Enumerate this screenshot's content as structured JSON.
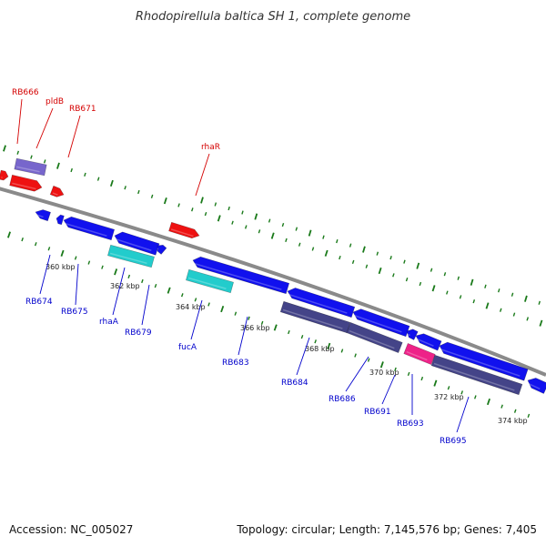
{
  "title": "Rhodopirellula baltica SH 1, complete genome",
  "footer": {
    "accession": "Accession: NC_005027",
    "summary": "Topology: circular; Length: 7,145,576 bp; Genes: 7,405"
  },
  "colors": {
    "backbone": "#8a8a8a",
    "tick": "#1a7a1a",
    "forward_label": "#d40000",
    "reverse_label": "#0000cc",
    "red_gene": "#ee1111",
    "blue_gene": "#1111ee",
    "cyan_gene": "#22cccc",
    "navy_gene": "#444488",
    "purple_gene": "#7766cc",
    "pink_gene": "#ee2288"
  },
  "scale_labels": [
    "360 kbp",
    "362 kbp",
    "364 kbp",
    "366 kbp",
    "368 kbp",
    "370 kbp",
    "372 kbp",
    "374 kbp"
  ],
  "forward_labels": [
    "RB666",
    "pldB",
    "RB671",
    "rhaR"
  ],
  "reverse_labels": [
    "RB674",
    "RB675",
    "rhaA",
    "RB679",
    "fucA",
    "RB683",
    "RB684",
    "RB686",
    "RB691",
    "RB693",
    "RB695"
  ],
  "genes": [
    {
      "type": "purple_gene"
    },
    {
      "type": "red_gene"
    },
    {
      "type": "red_gene"
    },
    {
      "type": "red_gene"
    },
    {
      "type": "red_gene"
    },
    {
      "type": "blue_gene"
    },
    {
      "type": "blue_gene"
    },
    {
      "type": "blue_gene"
    },
    {
      "type": "blue_gene"
    },
    {
      "type": "blue_gene"
    },
    {
      "type": "cyan_gene"
    },
    {
      "type": "blue_gene"
    },
    {
      "type": "cyan_gene"
    },
    {
      "type": "blue_gene"
    },
    {
      "type": "navy_gene"
    },
    {
      "type": "blue_gene"
    },
    {
      "type": "navy_gene"
    },
    {
      "type": "blue_gene"
    },
    {
      "type": "blue_gene"
    },
    {
      "type": "pink_gene"
    },
    {
      "type": "blue_gene"
    },
    {
      "type": "blue_gene"
    },
    {
      "type": "navy_gene"
    }
  ]
}
